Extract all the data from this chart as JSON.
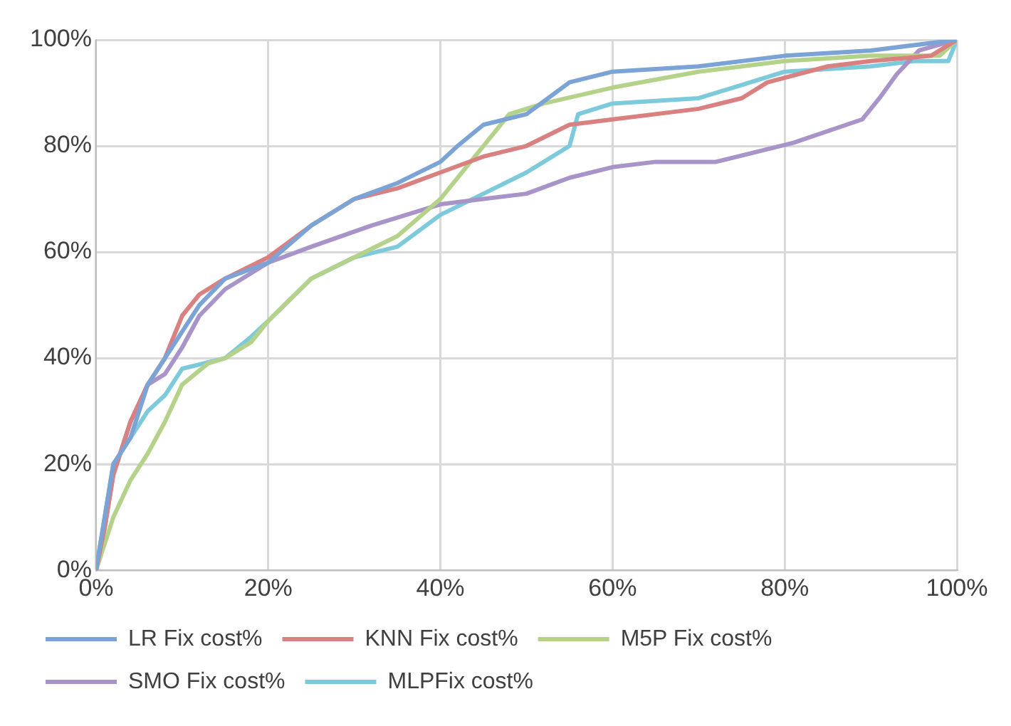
{
  "chart_data": {
    "type": "line",
    "grid": true,
    "legend": "bottom",
    "marker": "none",
    "line_style": "solid",
    "xlim": [
      0,
      100
    ],
    "ylim": [
      0,
      100
    ],
    "xticks": [
      {
        "value": 0,
        "label": "0%"
      },
      {
        "value": 20,
        "label": "20%"
      },
      {
        "value": 40,
        "label": "40%"
      },
      {
        "value": 60,
        "label": "60%"
      },
      {
        "value": 80,
        "label": "80%"
      },
      {
        "value": 100,
        "label": "100%"
      }
    ],
    "yticks": [
      {
        "value": 0,
        "label": "0%"
      },
      {
        "value": 20,
        "label": "20%"
      },
      {
        "value": 40,
        "label": "40%"
      },
      {
        "value": 60,
        "label": "60%"
      },
      {
        "value": 80,
        "label": "80%"
      },
      {
        "value": 100,
        "label": "100%"
      }
    ],
    "series": [
      {
        "name": "LR Fix cost%",
        "color": "#7ba3d6",
        "x": [
          0,
          1,
          2,
          4,
          6,
          8,
          10,
          12,
          15,
          20,
          25,
          30,
          35,
          40,
          42,
          45,
          50,
          55,
          60,
          70,
          80,
          90,
          100
        ],
        "values": [
          0,
          10,
          20,
          25,
          35,
          40,
          45,
          50,
          55,
          58,
          65,
          70,
          73,
          77,
          80,
          84,
          86,
          92,
          94,
          95,
          97,
          98,
          100
        ]
      },
      {
        "name": "KNN Fix cost%",
        "color": "#d98080",
        "x": [
          0,
          1,
          2,
          4,
          6,
          8,
          10,
          12,
          15,
          20,
          25,
          30,
          35,
          40,
          45,
          50,
          55,
          60,
          70,
          75,
          78,
          85,
          90,
          97,
          100
        ],
        "values": [
          0,
          8,
          18,
          28,
          35,
          40,
          48,
          52,
          55,
          59,
          65,
          70,
          72,
          75,
          78,
          80,
          84,
          85,
          87,
          89,
          92,
          95,
          96,
          97,
          100
        ]
      },
      {
        "name": "M5P Fix cost%",
        "color": "#b4d28a",
        "x": [
          0,
          1,
          2,
          4,
          6,
          8,
          10,
          13,
          15,
          18,
          20,
          25,
          30,
          35,
          40,
          45,
          48,
          52,
          60,
          70,
          80,
          90,
          98,
          100
        ],
        "values": [
          0,
          5,
          10,
          17,
          22,
          28,
          35,
          39,
          40,
          43,
          47,
          55,
          59,
          63,
          70,
          80,
          86,
          88,
          91,
          94,
          96,
          97,
          97,
          100
        ]
      },
      {
        "name": "SMO Fix cost%",
        "color": "#a894c8",
        "x": [
          0,
          1,
          2,
          4,
          6,
          8,
          10,
          12,
          15,
          20,
          25,
          32,
          40,
          45,
          50,
          55,
          60,
          65,
          72,
          81,
          89,
          91,
          93,
          95.6,
          100
        ],
        "values": [
          0,
          8,
          18,
          28,
          35,
          37,
          42,
          48,
          53,
          58,
          61,
          65,
          69,
          70,
          71,
          74,
          76,
          77,
          77,
          80.6,
          85,
          89,
          93.5,
          98,
          100
        ]
      },
      {
        "name": "MLPFix cost%",
        "color": "#7ccadb",
        "x": [
          0,
          1,
          2,
          4,
          6,
          8,
          10,
          15,
          18,
          20,
          25,
          30,
          35,
          40,
          45,
          50,
          55,
          56,
          60,
          70,
          80,
          90,
          95,
          99,
          100
        ],
        "values": [
          0,
          10,
          20,
          25,
          30,
          33,
          38,
          40,
          44,
          47,
          55,
          59,
          61,
          67,
          71,
          75,
          80,
          86,
          88,
          89,
          94,
          95,
          96,
          96,
          100
        ]
      }
    ]
  }
}
